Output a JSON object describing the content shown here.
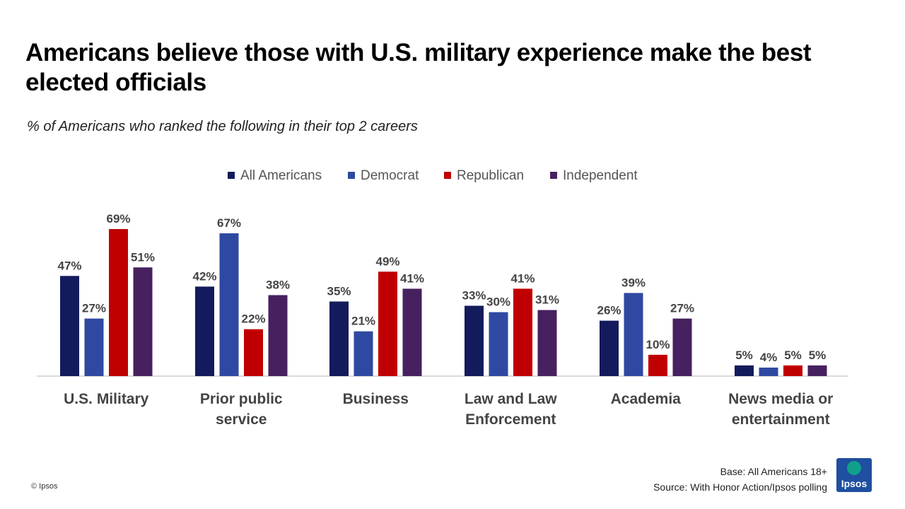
{
  "header": {
    "title": "Americans believe those with U.S. military experience make the best elected officials",
    "subtitle": "% of Americans who ranked the following in their top 2 careers"
  },
  "footer": {
    "copyright": "© Ipsos",
    "base": "Base: All Americans 18+",
    "source": "Source: With Honor Action/Ipsos polling",
    "logo_text": "Ipsos"
  },
  "chart_data": {
    "type": "bar",
    "categories": [
      [
        "U.S. Military"
      ],
      [
        "Prior public",
        "service"
      ],
      [
        "Business"
      ],
      [
        "Law and Law",
        "Enforcement"
      ],
      [
        "Academia"
      ],
      [
        "News media or",
        "entertainment"
      ]
    ],
    "series": [
      {
        "name": "All Americans",
        "color": "#141b5c",
        "values": [
          47,
          42,
          35,
          33,
          26,
          5
        ]
      },
      {
        "name": "Democrat",
        "color": "#2f49a2",
        "values": [
          27,
          67,
          21,
          30,
          39,
          4
        ]
      },
      {
        "name": "Republican",
        "color": "#c00000",
        "values": [
          69,
          22,
          49,
          41,
          10,
          5
        ]
      },
      {
        "name": "Independent",
        "color": "#47215f",
        "values": [
          51,
          38,
          41,
          31,
          27,
          5
        ]
      }
    ],
    "unit": "%",
    "ylim": [
      0,
      70
    ],
    "legend": "top",
    "grid": false
  }
}
